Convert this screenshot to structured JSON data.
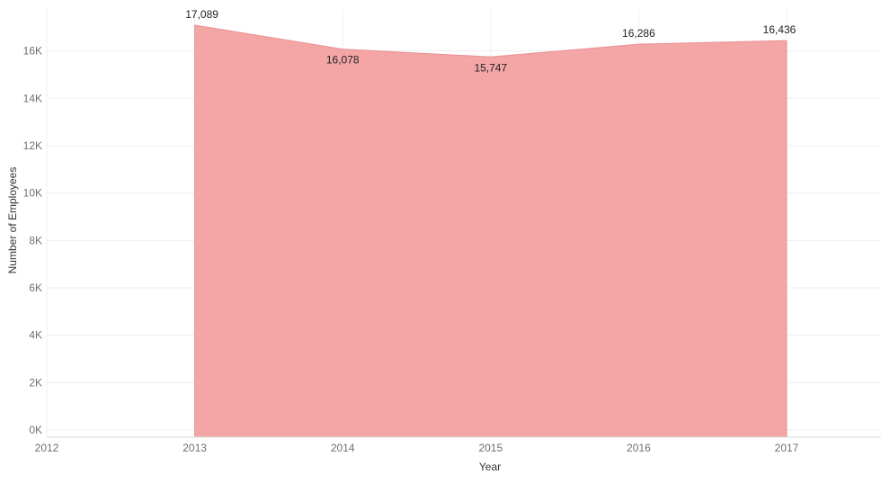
{
  "chart_data": {
    "type": "area",
    "title": "",
    "xlabel": "Year",
    "ylabel": "Number of Employees",
    "x_ticks": [
      "2012",
      "2013",
      "2014",
      "2015",
      "2016",
      "2017"
    ],
    "x": [
      "2013",
      "2014",
      "2015",
      "2016",
      "2017"
    ],
    "values": [
      17089,
      16078,
      15747,
      16286,
      16436
    ],
    "data_labels": [
      "17,089",
      "16,078",
      "15,747",
      "16,286",
      "16,436"
    ],
    "y_ticks": [
      0,
      2000,
      4000,
      6000,
      8000,
      10000,
      12000,
      14000,
      16000
    ],
    "y_tick_labels": [
      "0K",
      "2K",
      "4K",
      "6K",
      "8K",
      "10K",
      "12K",
      "14K",
      "16K"
    ],
    "ylim": [
      0,
      17500
    ],
    "grid": true,
    "legend": "none",
    "colors": {
      "fill": "#f4a6a7",
      "stroke": "#e98f92"
    }
  }
}
